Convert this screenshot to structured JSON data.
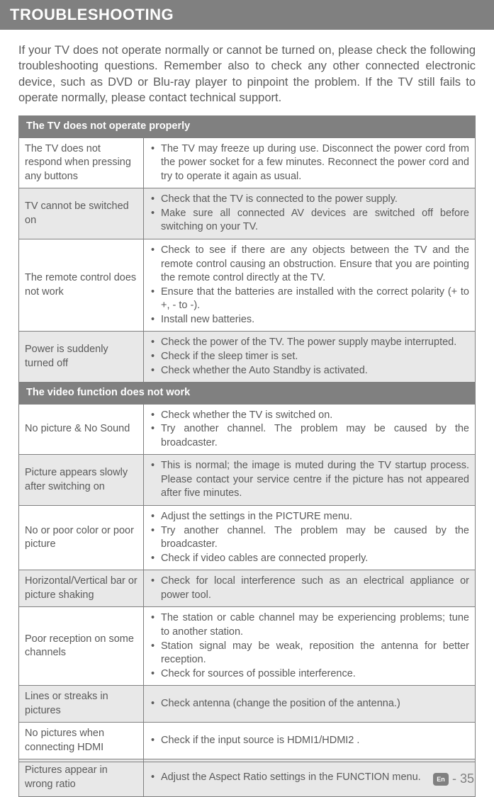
{
  "title": "TROUBLESHOOTING",
  "intro": "If your TV does not operate normally or cannot be turned on, please check the following troubleshooting questions. Remember also to check any other connected electronic device, such as DVD or Blu-ray player to pinpoint the problem. If the TV still fails to operate normally, please contact technical support.",
  "sections": [
    {
      "header": "The TV does not operate properly",
      "rows": [
        {
          "alt": false,
          "issue": "The TV does not respond when pressing any buttons",
          "solutions": [
            "The TV may freeze up during use. Disconnect the power cord from the power socket for a few minutes. Reconnect the power cord and try to operate it again as usual."
          ]
        },
        {
          "alt": true,
          "issue": "TV cannot be switched on",
          "solutions": [
            "Check that the TV is connected to the power supply.",
            "Make sure all connected AV devices are switched off before switching on your TV."
          ]
        },
        {
          "alt": false,
          "issue": "The remote control does not work",
          "solutions": [
            "Check to see if there are any objects between the TV and the remote control causing an obstruction. Ensure that you are pointing the remote control directly at the TV.",
            "Ensure that the batteries are installed with the correct polarity (+ to +, - to -).",
            "Install new batteries."
          ]
        },
        {
          "alt": true,
          "issue": "Power is suddenly turned off",
          "solutions": [
            "Check the power of the TV. The power supply maybe interrupted.",
            "Check if the sleep timer is set.",
            "Check whether the Auto Standby is activated."
          ]
        }
      ]
    },
    {
      "header": "The video function does not work",
      "rows": [
        {
          "alt": false,
          "issue": "No picture & No Sound",
          "solutions": [
            "Check whether the TV is switched on.",
            "Try another channel. The problem may be caused by the broadcaster."
          ]
        },
        {
          "alt": true,
          "issue": "Picture appears slowly after switching on",
          "solutions": [
            "This is normal; the image is muted during the TV startup process. Please contact your service centre if the picture has not appeared after five minutes."
          ]
        },
        {
          "alt": false,
          "issue": "No or poor color or poor picture",
          "solutions": [
            "Adjust the settings in the PICTURE menu.",
            "Try another channel. The problem may be caused by the broadcaster.",
            "Check if video cables are connected properly."
          ]
        },
        {
          "alt": true,
          "issue": "Horizontal/Vertical bar or picture shaking",
          "solutions": [
            "Check for local interference such as an electrical appliance or power tool."
          ]
        },
        {
          "alt": false,
          "issue": "Poor reception on some channels",
          "solutions": [
            "The station or cable channel may be experiencing problems; tune to another station.",
            "Station signal may be weak, reposition the antenna for better reception.",
            "Check for sources of possible interference."
          ]
        },
        {
          "alt": true,
          "issue": "Lines or streaks in pictures",
          "solutions": [
            "Check antenna (change the position of the antenna.)"
          ]
        },
        {
          "alt": false,
          "issue": "No pictures when connecting HDMI",
          "solutions": [
            "Check if the input source is HDMI1/HDMI2 ."
          ]
        },
        {
          "alt": true,
          "issue": "Pictures appear in wrong ratio",
          "solutions": [
            "Adjust the Aspect Ratio settings in the FUNCTION menu."
          ]
        }
      ]
    }
  ],
  "footer": {
    "lang": "En",
    "sep": "-",
    "page": "35"
  }
}
